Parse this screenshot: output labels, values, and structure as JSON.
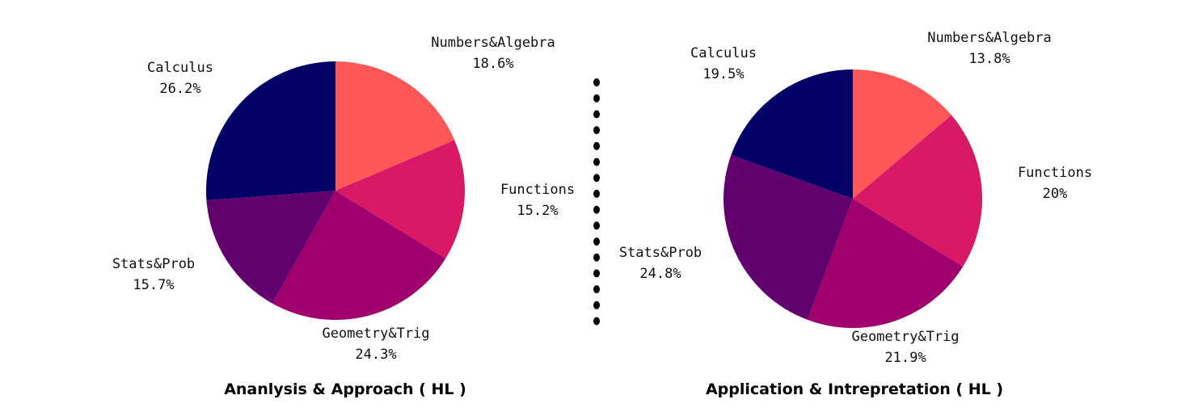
{
  "chart_data": [
    {
      "type": "pie",
      "title": "Ananlysis & Approach ( HL )",
      "slices": [
        {
          "label": "Numbers&Algebra",
          "pct_text": "18.6%",
          "value": 18.6,
          "color": "#FF5757"
        },
        {
          "label": "Functions",
          "pct_text": "15.2%",
          "value": 15.2,
          "color": "#D91965"
        },
        {
          "label": "Geometry&Trig",
          "pct_text": "24.3%",
          "value": 24.3,
          "color": "#A0006E"
        },
        {
          "label": "Stats&Prob",
          "pct_text": "15.7%",
          "value": 15.7,
          "color": "#62006E"
        },
        {
          "label": "Calculus",
          "pct_text": "26.2%",
          "value": 26.2,
          "color": "#000066"
        }
      ]
    },
    {
      "type": "pie",
      "title": "Application & Intrepretation ( HL )",
      "slices": [
        {
          "label": "Numbers&Algebra",
          "pct_text": "13.8%",
          "value": 13.8,
          "color": "#FF5757"
        },
        {
          "label": "Functions",
          "pct_text": "20%",
          "value": 20,
          "color": "#D91965"
        },
        {
          "label": "Geometry&Trig",
          "pct_text": "21.9%",
          "value": 21.9,
          "color": "#A0006E"
        },
        {
          "label": "Stats&Prob",
          "pct_text": "24.8%",
          "value": 24.8,
          "color": "#62006E"
        },
        {
          "label": "Calculus",
          "pct_text": "19.5%",
          "value": 19.5,
          "color": "#000066"
        }
      ]
    }
  ]
}
